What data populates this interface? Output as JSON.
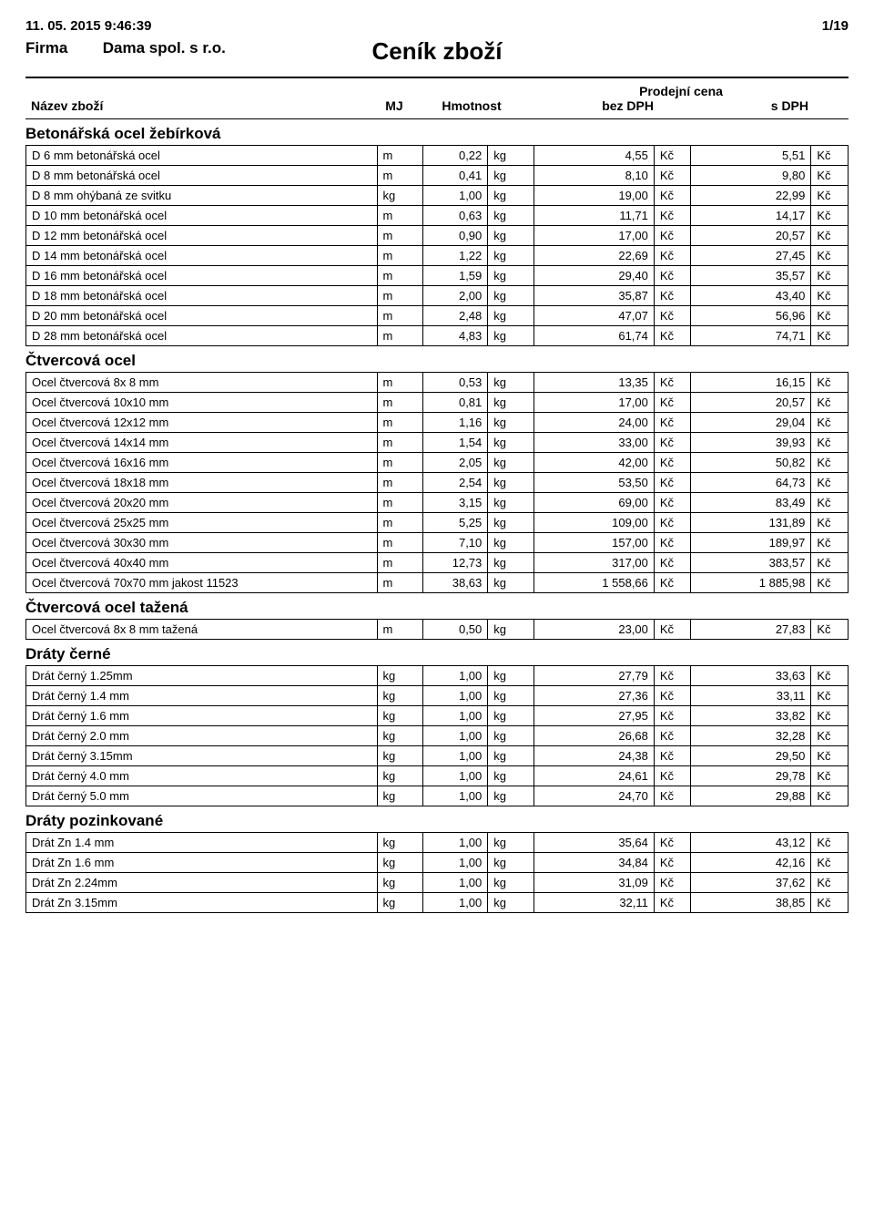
{
  "meta": {
    "timestamp": "11. 05. 2015  9:46:39",
    "page": "1/19",
    "firma_label": "Firma",
    "firma_value": "Dama spol. s r.o.",
    "title": "Ceník zboží",
    "header": {
      "nazev": "Název zboží",
      "mj": "MJ",
      "hmotnost": "Hmotnost",
      "prodejni": "Prodejní cena",
      "bez": "bez DPH",
      "s": "s DPH"
    }
  },
  "currency": "Kč",
  "weight_unit": "kg",
  "length_unit": "m",
  "sections": [
    {
      "title": "Betonářská ocel žebírková",
      "rows": [
        {
          "name": "D  6  mm   betonářská ocel",
          "mj": "m",
          "hm": "0,22",
          "bez": "4,55",
          "s": "5,51"
        },
        {
          "name": "D  8  mm   betonářská ocel",
          "mj": "m",
          "hm": "0,41",
          "bez": "8,10",
          "s": "9,80"
        },
        {
          "name": "D  8  mm   ohýbaná ze svitku",
          "mj": "kg",
          "hm": "1,00",
          "bez": "19,00",
          "s": "22,99"
        },
        {
          "name": "D 10  mm   betonářská ocel",
          "mj": "m",
          "hm": "0,63",
          "bez": "11,71",
          "s": "14,17"
        },
        {
          "name": "D 12  mm   betonářská ocel",
          "mj": "m",
          "hm": "0,90",
          "bez": "17,00",
          "s": "20,57"
        },
        {
          "name": "D 14  mm   betonářská ocel",
          "mj": "m",
          "hm": "1,22",
          "bez": "22,69",
          "s": "27,45"
        },
        {
          "name": "D 16  mm   betonářská ocel",
          "mj": "m",
          "hm": "1,59",
          "bez": "29,40",
          "s": "35,57"
        },
        {
          "name": "D 18  mm   betonářská ocel",
          "mj": "m",
          "hm": "2,00",
          "bez": "35,87",
          "s": "43,40"
        },
        {
          "name": "D 20  mm   betonářská ocel",
          "mj": "m",
          "hm": "2,48",
          "bez": "47,07",
          "s": "56,96"
        },
        {
          "name": "D 28  mm   betonářská ocel",
          "mj": "m",
          "hm": "4,83",
          "bez": "61,74",
          "s": "74,71"
        }
      ]
    },
    {
      "title": "Čtvercová ocel",
      "rows": [
        {
          "name": "Ocel čtvercová  8x 8 mm",
          "mj": "m",
          "hm": "0,53",
          "bez": "13,35",
          "s": "16,15"
        },
        {
          "name": "Ocel čtvercová 10x10 mm",
          "mj": "m",
          "hm": "0,81",
          "bez": "17,00",
          "s": "20,57"
        },
        {
          "name": "Ocel čtvercová 12x12 mm",
          "mj": "m",
          "hm": "1,16",
          "bez": "24,00",
          "s": "29,04"
        },
        {
          "name": "Ocel čtvercová 14x14 mm",
          "mj": "m",
          "hm": "1,54",
          "bez": "33,00",
          "s": "39,93"
        },
        {
          "name": "Ocel čtvercová 16x16 mm",
          "mj": "m",
          "hm": "2,05",
          "bez": "42,00",
          "s": "50,82"
        },
        {
          "name": "Ocel čtvercová 18x18 mm",
          "mj": "m",
          "hm": "2,54",
          "bez": "53,50",
          "s": "64,73"
        },
        {
          "name": "Ocel čtvercová 20x20 mm",
          "mj": "m",
          "hm": "3,15",
          "bez": "69,00",
          "s": "83,49"
        },
        {
          "name": "Ocel čtvercová 25x25 mm",
          "mj": "m",
          "hm": "5,25",
          "bez": "109,00",
          "s": "131,89"
        },
        {
          "name": "Ocel čtvercová 30x30 mm",
          "mj": "m",
          "hm": "7,10",
          "bez": "157,00",
          "s": "189,97"
        },
        {
          "name": "Ocel čtvercová 40x40 mm",
          "mj": "m",
          "hm": "12,73",
          "bez": "317,00",
          "s": "383,57"
        },
        {
          "name": "Ocel čtvercová 70x70 mm  jakost 11523",
          "mj": "m",
          "hm": "38,63",
          "bez": "1 558,66",
          "s": "1 885,98"
        }
      ]
    },
    {
      "title": "Čtvercová ocel tažená",
      "rows": [
        {
          "name": "Ocel čtvercová  8x 8 mm  tažená",
          "mj": "m",
          "hm": "0,50",
          "bez": "23,00",
          "s": "27,83"
        }
      ]
    },
    {
      "title": "Dráty černé",
      "rows": [
        {
          "name": "Drát černý 1.25mm",
          "mj": "kg",
          "hm": "1,00",
          "bez": "27,79",
          "s": "33,63"
        },
        {
          "name": "Drát černý 1.4 mm",
          "mj": "kg",
          "hm": "1,00",
          "bez": "27,36",
          "s": "33,11"
        },
        {
          "name": "Drát černý 1.6 mm",
          "mj": "kg",
          "hm": "1,00",
          "bez": "27,95",
          "s": "33,82"
        },
        {
          "name": "Drát černý 2.0 mm",
          "mj": "kg",
          "hm": "1,00",
          "bez": "26,68",
          "s": "32,28"
        },
        {
          "name": "Drát černý 3.15mm",
          "mj": "kg",
          "hm": "1,00",
          "bez": "24,38",
          "s": "29,50"
        },
        {
          "name": "Drát černý 4.0 mm",
          "mj": "kg",
          "hm": "1,00",
          "bez": "24,61",
          "s": "29,78"
        },
        {
          "name": "Drát černý 5.0 mm",
          "mj": "kg",
          "hm": "1,00",
          "bez": "24,70",
          "s": "29,88"
        }
      ]
    },
    {
      "title": "Dráty pozinkované",
      "rows": [
        {
          "name": "Drát Zn 1.4 mm",
          "mj": "kg",
          "hm": "1,00",
          "bez": "35,64",
          "s": "43,12"
        },
        {
          "name": "Drát Zn 1.6 mm",
          "mj": "kg",
          "hm": "1,00",
          "bez": "34,84",
          "s": "42,16"
        },
        {
          "name": "Drát Zn 2.24mm",
          "mj": "kg",
          "hm": "1,00",
          "bez": "31,09",
          "s": "37,62"
        },
        {
          "name": "Drát Zn 3.15mm",
          "mj": "kg",
          "hm": "1,00",
          "bez": "32,11",
          "s": "38,85"
        }
      ]
    }
  ]
}
